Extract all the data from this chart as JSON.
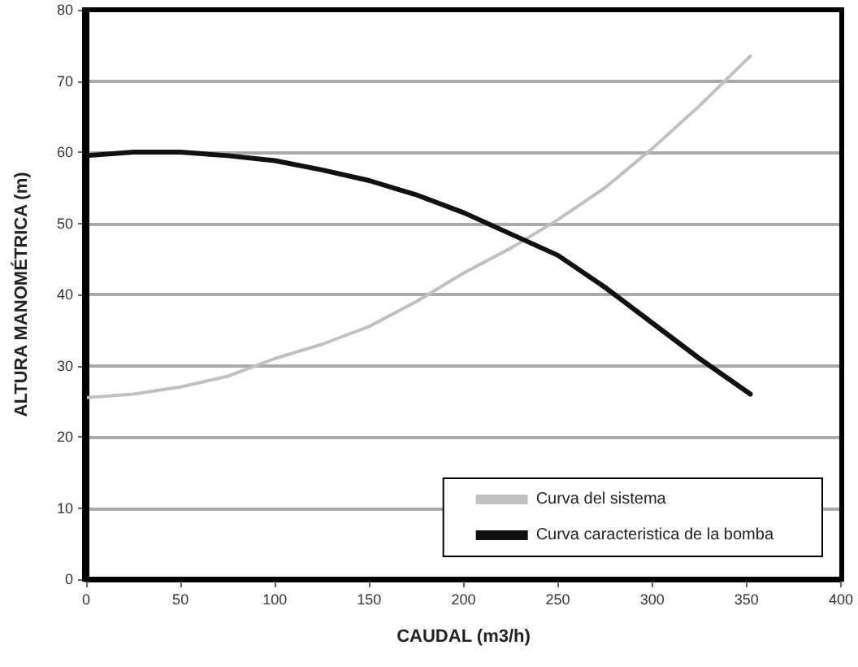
{
  "chart_data": {
    "type": "line",
    "xlabel": "CAUDAL (m3/h)",
    "ylabel": "ALTURA MANOMÉTRICA (m)",
    "xlim": [
      0,
      400
    ],
    "xticks": [
      0,
      50,
      100,
      150,
      200,
      250,
      300,
      350,
      400
    ],
    "ylim": [
      0,
      80
    ],
    "yticks": [
      0,
      10,
      20,
      30,
      40,
      50,
      60,
      70,
      80
    ],
    "grid": "y",
    "legend": "bottom right",
    "marker": "none",
    "line_style": "solid",
    "series": [
      {
        "name": "Curva del sistema",
        "color": "#c0c0c0",
        "x": [
          0,
          25,
          50,
          75,
          100,
          125,
          150,
          175,
          200,
          225,
          250,
          275,
          300,
          325,
          352
        ],
        "values": [
          25.5,
          26,
          27,
          28.5,
          31,
          33,
          35.5,
          39,
          43,
          46.5,
          50.5,
          55,
          60.5,
          66.5,
          73.5
        ]
      },
      {
        "name": "Curva caracteristica de la bomba",
        "color": "#111111",
        "x": [
          0,
          25,
          50,
          75,
          100,
          125,
          150,
          175,
          200,
          225,
          250,
          275,
          300,
          325,
          352
        ],
        "values": [
          59.5,
          60,
          60,
          59.5,
          58.8,
          57.5,
          56,
          54,
          51.5,
          48.5,
          45.5,
          41,
          36,
          31,
          26
        ]
      }
    ]
  }
}
